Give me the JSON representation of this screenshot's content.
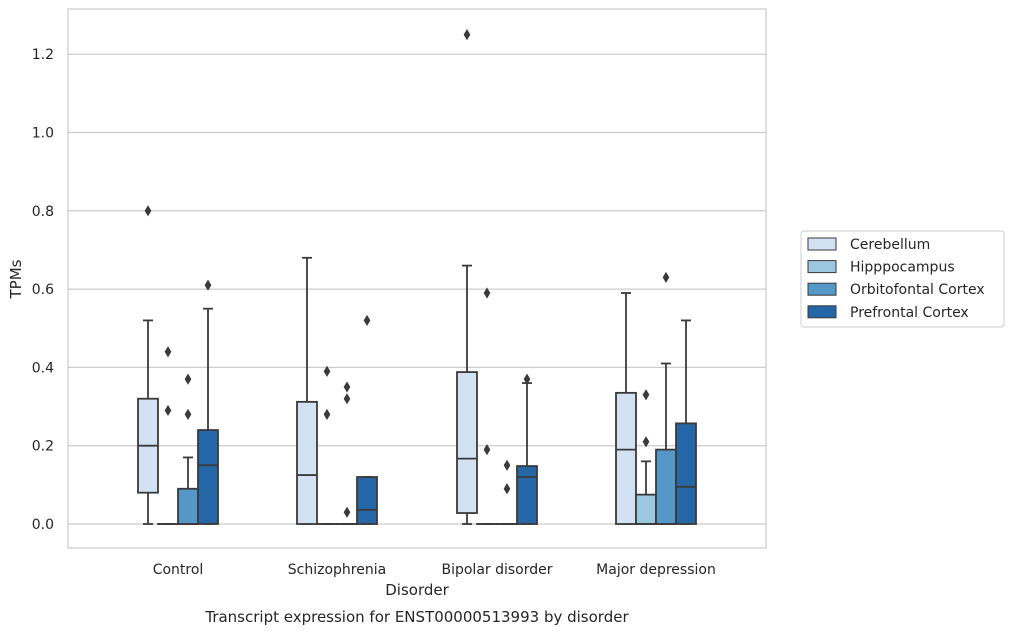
{
  "chart_data": {
    "type": "box",
    "caption": "Transcript expression for ENST00000513993 by disorder",
    "xlabel": "Disorder",
    "ylabel": "TPMs",
    "ylim": [
      -0.06,
      1.31
    ],
    "yticks": [
      0.0,
      0.2,
      0.4,
      0.6,
      0.8,
      1.0,
      1.2
    ],
    "ytick_labels": [
      "0.0",
      "0.2",
      "0.4",
      "0.6",
      "0.8",
      "1.0",
      "1.2"
    ],
    "grid": true,
    "legend_position": "right",
    "categories": [
      "Control",
      "Schizophrenia",
      "Bipolar disorder",
      "Major depression"
    ],
    "series": [
      {
        "name": "Cerebellum",
        "color": "#d2e2f2",
        "boxes": [
          {
            "whisker_low": 0.0,
            "q1": 0.08,
            "median": 0.2,
            "q3": 0.32,
            "whisker_high": 0.52,
            "outliers": [
              0.8
            ]
          },
          {
            "whisker_low": 0.0,
            "q1": 0.0,
            "median": 0.125,
            "q3": 0.312,
            "whisker_high": 0.68,
            "outliers": []
          },
          {
            "whisker_low": 0.0,
            "q1": 0.028,
            "median": 0.167,
            "q3": 0.388,
            "whisker_high": 0.66,
            "outliers": [
              1.25
            ]
          },
          {
            "whisker_low": 0.0,
            "q1": 0.0,
            "median": 0.19,
            "q3": 0.335,
            "whisker_high": 0.59,
            "outliers": []
          }
        ]
      },
      {
        "name": "Hipppocampus",
        "color": "#9cc7e0",
        "boxes": [
          {
            "whisker_low": 0.0,
            "q1": 0.0,
            "median": 0.0,
            "q3": 0.0,
            "whisker_high": 0.0,
            "outliers": [
              0.29,
              0.44
            ]
          },
          {
            "whisker_low": 0.0,
            "q1": 0.0,
            "median": 0.0,
            "q3": 0.0,
            "whisker_high": 0.0,
            "outliers": [
              0.28,
              0.39
            ]
          },
          {
            "whisker_low": 0.0,
            "q1": 0.0,
            "median": 0.0,
            "q3": 0.0,
            "whisker_high": 0.0,
            "outliers": [
              0.19,
              0.59
            ]
          },
          {
            "whisker_low": 0.0,
            "q1": 0.0,
            "median": 0.0,
            "q3": 0.075,
            "whisker_high": 0.16,
            "outliers": [
              0.21,
              0.33
            ]
          }
        ]
      },
      {
        "name": "Orbitofontal Cortex",
        "color": "#5597c6",
        "boxes": [
          {
            "whisker_low": 0.0,
            "q1": 0.0,
            "median": 0.0,
            "q3": 0.09,
            "whisker_high": 0.17,
            "outliers": [
              0.28,
              0.37
            ]
          },
          {
            "whisker_low": 0.0,
            "q1": 0.0,
            "median": 0.0,
            "q3": 0.0,
            "whisker_high": 0.0,
            "outliers": [
              0.03,
              0.32,
              0.35
            ]
          },
          {
            "whisker_low": 0.0,
            "q1": 0.0,
            "median": 0.0,
            "q3": 0.0,
            "whisker_high": 0.0,
            "outliers": [
              0.09,
              0.15
            ]
          },
          {
            "whisker_low": 0.0,
            "q1": 0.0,
            "median": 0.0,
            "q3": 0.19,
            "whisker_high": 0.41,
            "outliers": [
              0.63
            ]
          }
        ]
      },
      {
        "name": "Prefrontal Cortex",
        "color": "#2566a6",
        "boxes": [
          {
            "whisker_low": 0.0,
            "q1": 0.0,
            "median": 0.15,
            "q3": 0.24,
            "whisker_high": 0.55,
            "outliers": [
              0.61
            ]
          },
          {
            "whisker_low": 0.0,
            "q1": 0.0,
            "median": 0.036,
            "q3": 0.12,
            "whisker_high": 0.12,
            "outliers": [
              0.52
            ]
          },
          {
            "whisker_low": 0.0,
            "q1": 0.0,
            "median": 0.12,
            "q3": 0.148,
            "whisker_high": 0.36,
            "outliers": [
              0.37
            ]
          },
          {
            "whisker_low": 0.0,
            "q1": 0.0,
            "median": 0.095,
            "q3": 0.257,
            "whisker_high": 0.52,
            "outliers": []
          }
        ]
      }
    ]
  }
}
